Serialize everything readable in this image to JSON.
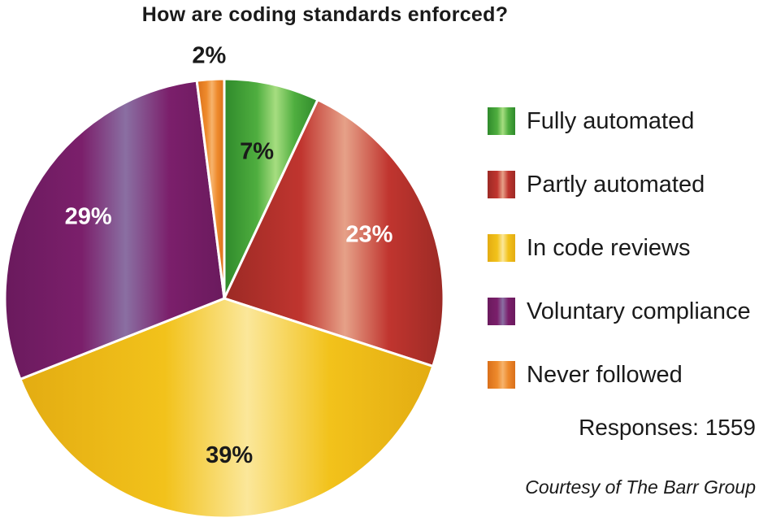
{
  "chart_data": {
    "type": "pie",
    "title": "How are coding standards enforced?",
    "slices": [
      {
        "label": "Fully automated",
        "value": 7,
        "value_label": "7%",
        "color": "#4fae3f",
        "color_dark": "#2f8a2b",
        "color_light": "#a6dd80",
        "text_color": "#1a1a1a"
      },
      {
        "label": "Partly automated",
        "value": 23,
        "value_label": "23%",
        "color": "#c0352f",
        "color_dark": "#9c2a25",
        "color_light": "#e6a188",
        "text_color": "#ffffff"
      },
      {
        "label": "In code reviews",
        "value": 39,
        "value_label": "39%",
        "color": "#f2c21b",
        "color_dark": "#e3ac12",
        "color_light": "#fbe79a",
        "text_color": "#1a1a1a"
      },
      {
        "label": "Voluntary compliance",
        "value": 29,
        "value_label": "29%",
        "color": "#7b1f6b",
        "color_dark": "#6a1a5d",
        "color_light": "#8a6fa2",
        "text_color": "#ffffff"
      },
      {
        "label": "Never followed",
        "value": 2,
        "value_label": "2%",
        "color": "#ee8a2c",
        "color_dark": "#d96f1a",
        "color_light": "#f6b36c",
        "text_color": "#1a1a1a"
      }
    ],
    "legend_position": "right",
    "footer": {
      "responses": "Responses: 1559",
      "courtesy": "Courtesy of The Barr Group"
    }
  }
}
